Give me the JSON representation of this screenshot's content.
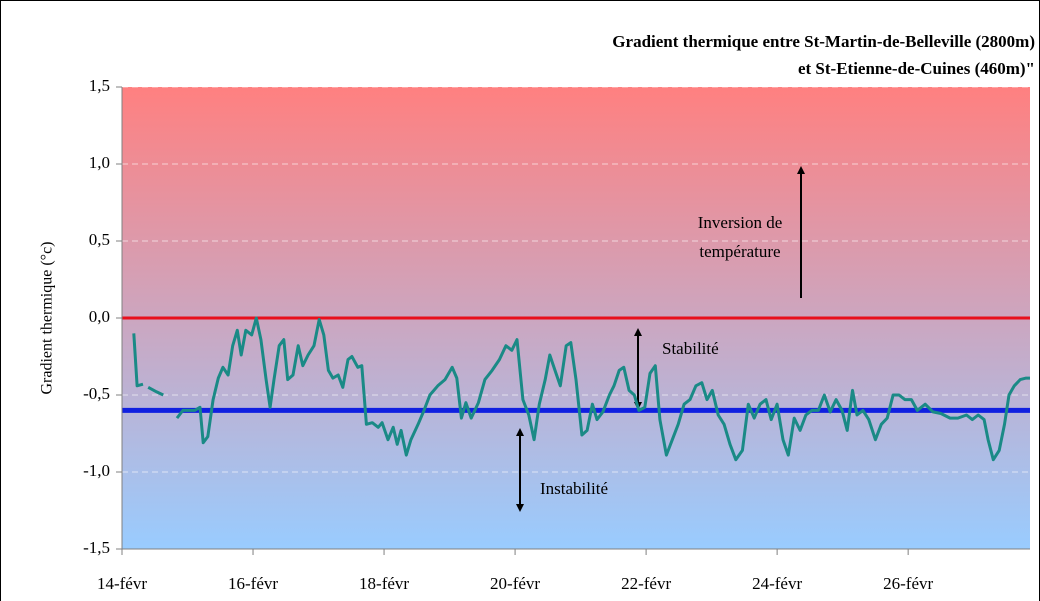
{
  "chart_data": {
    "type": "line",
    "title": [
      "Gradient thermique entre St-Martin-de-Belleville (2800m)",
      "et St-Etienne-de-Cuines (460m)\""
    ],
    "y_label": "Gradient thermique (°c)",
    "annotations": [
      "Inversion de",
      "température",
      "Stabilité",
      "Instabilité"
    ],
    "color": "#1a8a86",
    "background_gradient": [
      "#ff8080",
      "#99ccff"
    ],
    "reference_lines": [
      {
        "value": 0,
        "color": "#e8101c"
      },
      {
        "value": -0.6,
        "color": "#1020e0"
      }
    ],
    "grid": true,
    "xlim": [
      14,
      27.86
    ],
    "xticks": [
      {
        "value": 14,
        "label": "14-févr"
      },
      {
        "value": 16,
        "label": "16-févr"
      },
      {
        "value": 18,
        "label": "18-févr"
      },
      {
        "value": 20,
        "label": "20-févr"
      },
      {
        "value": 22,
        "label": "22-févr"
      },
      {
        "value": 24,
        "label": "24-févr"
      },
      {
        "value": 26,
        "label": "26-févr"
      }
    ],
    "ylim": [
      -1.5,
      1.5
    ],
    "yticks": [
      {
        "value": -1.5,
        "label": "-1,5"
      },
      {
        "value": -1.0,
        "label": "-1,0"
      },
      {
        "value": -0.5,
        "label": "-0,5"
      },
      {
        "value": 0,
        "label": "0,0"
      },
      {
        "value": 0.5,
        "label": "0,5"
      },
      {
        "value": 1.0,
        "label": "1,0"
      },
      {
        "value": 1.5,
        "label": "1,5"
      }
    ],
    "x": [
      14.18,
      14.23,
      14.32,
      null,
      14.4,
      14.53,
      14.63,
      null,
      14.84,
      14.93,
      15.11,
      15.19,
      15.24,
      15.31,
      15.39,
      15.47,
      15.54,
      15.62,
      15.69,
      15.76,
      15.82,
      15.89,
      15.98,
      16.05,
      16.12,
      16.2,
      16.26,
      16.32,
      16.4,
      16.47,
      16.53,
      16.61,
      16.69,
      16.76,
      16.84,
      16.93,
      17.01,
      17.08,
      17.15,
      17.22,
      17.3,
      17.37,
      17.45,
      17.51,
      17.6,
      17.66,
      17.73,
      17.82,
      17.91,
      17.97,
      18.06,
      18.14,
      18.2,
      18.26,
      18.34,
      18.41,
      18.52,
      18.61,
      18.7,
      18.82,
      18.93,
      19.04,
      19.11,
      19.18,
      19.25,
      19.33,
      19.44,
      19.54,
      19.65,
      19.76,
      19.86,
      19.95,
      20.03,
      20.12,
      20.21,
      20.29,
      20.37,
      20.46,
      20.53,
      20.61,
      20.69,
      20.78,
      20.85,
      20.93,
      21.02,
      21.1,
      21.18,
      21.25,
      21.34,
      21.44,
      21.51,
      21.59,
      21.66,
      21.74,
      21.82,
      21.89,
      21.98,
      22.06,
      22.14,
      22.21,
      22.31,
      22.4,
      22.49,
      22.58,
      22.67,
      22.76,
      22.85,
      22.93,
      23.01,
      23.1,
      23.19,
      23.28,
      23.37,
      23.47,
      23.56,
      23.65,
      23.74,
      23.83,
      23.91,
      24.0,
      24.09,
      24.17,
      24.26,
      24.35,
      24.44,
      24.53,
      24.63,
      24.72,
      24.81,
      24.9,
      24.99,
      25.07,
      25.15,
      25.22,
      25.31,
      25.4,
      25.5,
      25.59,
      25.68,
      25.77,
      25.86,
      25.95,
      26.05,
      26.14,
      26.26,
      26.38,
      26.5,
      26.64,
      26.76,
      26.89,
      26.98,
      27.07,
      27.16,
      27.22,
      27.3,
      27.39,
      27.47,
      27.54,
      27.62,
      27.71,
      27.8,
      27.86
    ],
    "values": [
      -0.1,
      -0.44,
      -0.43,
      null,
      -0.45,
      -0.48,
      -0.5,
      null,
      -0.65,
      -0.6,
      -0.6,
      -0.58,
      -0.81,
      -0.77,
      -0.53,
      -0.39,
      -0.32,
      -0.37,
      -0.18,
      -0.08,
      -0.24,
      -0.08,
      -0.11,
      0.0,
      -0.14,
      -0.4,
      -0.58,
      -0.4,
      -0.18,
      -0.14,
      -0.4,
      -0.37,
      -0.18,
      -0.31,
      -0.24,
      -0.18,
      -0.01,
      -0.11,
      -0.34,
      -0.39,
      -0.37,
      -0.45,
      -0.27,
      -0.25,
      -0.32,
      -0.31,
      -0.69,
      -0.68,
      -0.71,
      -0.68,
      -0.79,
      -0.71,
      -0.82,
      -0.73,
      -0.89,
      -0.79,
      -0.69,
      -0.6,
      -0.5,
      -0.44,
      -0.4,
      -0.32,
      -0.39,
      -0.65,
      -0.55,
      -0.65,
      -0.55,
      -0.4,
      -0.34,
      -0.27,
      -0.18,
      -0.21,
      -0.14,
      -0.53,
      -0.63,
      -0.79,
      -0.56,
      -0.4,
      -0.24,
      -0.34,
      -0.44,
      -0.18,
      -0.16,
      -0.4,
      -0.76,
      -0.73,
      -0.56,
      -0.66,
      -0.61,
      -0.5,
      -0.44,
      -0.34,
      -0.32,
      -0.47,
      -0.5,
      -0.6,
      -0.58,
      -0.36,
      -0.31,
      -0.66,
      -0.89,
      -0.79,
      -0.69,
      -0.56,
      -0.53,
      -0.44,
      -0.42,
      -0.53,
      -0.47,
      -0.63,
      -0.69,
      -0.82,
      -0.92,
      -0.86,
      -0.56,
      -0.65,
      -0.56,
      -0.53,
      -0.66,
      -0.56,
      -0.79,
      -0.89,
      -0.65,
      -0.73,
      -0.63,
      -0.6,
      -0.6,
      -0.5,
      -0.61,
      -0.53,
      -0.6,
      -0.73,
      -0.47,
      -0.63,
      -0.6,
      -0.66,
      -0.79,
      -0.69,
      -0.65,
      -0.5,
      -0.5,
      -0.53,
      -0.53,
      -0.6,
      -0.56,
      -0.61,
      -0.62,
      -0.65,
      -0.65,
      -0.63,
      -0.66,
      -0.63,
      -0.66,
      -0.79,
      -0.92,
      -0.86,
      -0.69,
      -0.5,
      -0.44,
      -0.4,
      -0.39,
      -0.39
    ]
  }
}
